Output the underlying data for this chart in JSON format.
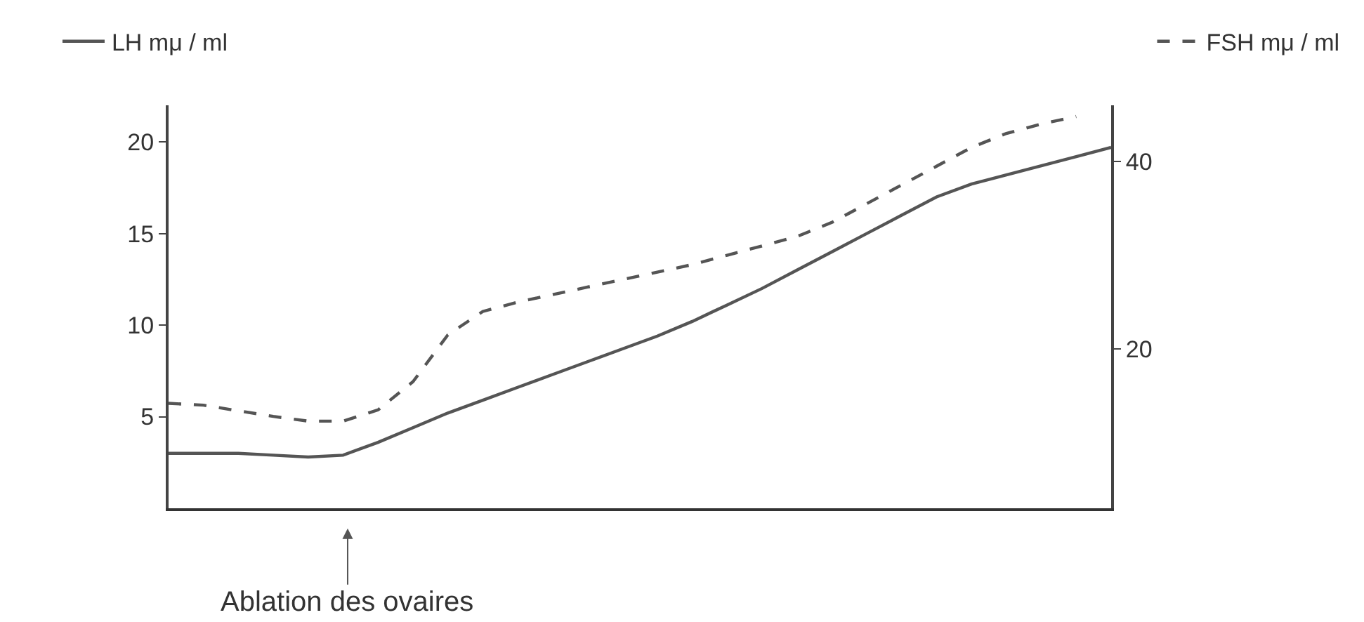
{
  "chart_data": {
    "type": "line",
    "categories": [
      null,
      null,
      null,
      null,
      null,
      null,
      null,
      null,
      null,
      null,
      null,
      null,
      null,
      null,
      null,
      null,
      null,
      null,
      null,
      null,
      null,
      null,
      null,
      null,
      null,
      null,
      null,
      null
    ],
    "series": [
      {
        "name": "LH mμ / ml",
        "color": "#555555",
        "line_style": "solid",
        "values": [
          3.0,
          3.0,
          3.0,
          2.9,
          2.8,
          2.9,
          3.6,
          4.4,
          5.2,
          5.9,
          6.6,
          7.3,
          8.0,
          8.7,
          9.4,
          10.2,
          11.1,
          12.0,
          13.0,
          14.0,
          15.0,
          16.0,
          17.0,
          17.7,
          18.2,
          18.7,
          19.2,
          19.7
        ]
      },
      {
        "name": "FSH mμ / ml",
        "color": "#555555",
        "line_style": "dashed",
        "axis": "y2",
        "values": [
          14.2,
          14.0,
          13.4,
          12.8,
          12.3,
          12.3,
          13.5,
          16.5,
          21.5,
          24.0,
          25.0,
          25.8,
          26.6,
          27.4,
          28.2,
          29.0,
          30.0,
          31.0,
          32.0,
          33.5,
          35.5,
          37.5,
          39.5,
          41.5,
          43.0,
          44.0,
          44.8,
          null
        ]
      }
    ],
    "ylim": [
      0,
      22
    ],
    "yticks": [
      5,
      10,
      15,
      20
    ],
    "y2lim": [
      3,
      46
    ],
    "y2ticks": [
      20,
      40
    ],
    "legend": "top",
    "marker": "none",
    "annotations": [
      "Ablation des ovaires"
    ]
  }
}
